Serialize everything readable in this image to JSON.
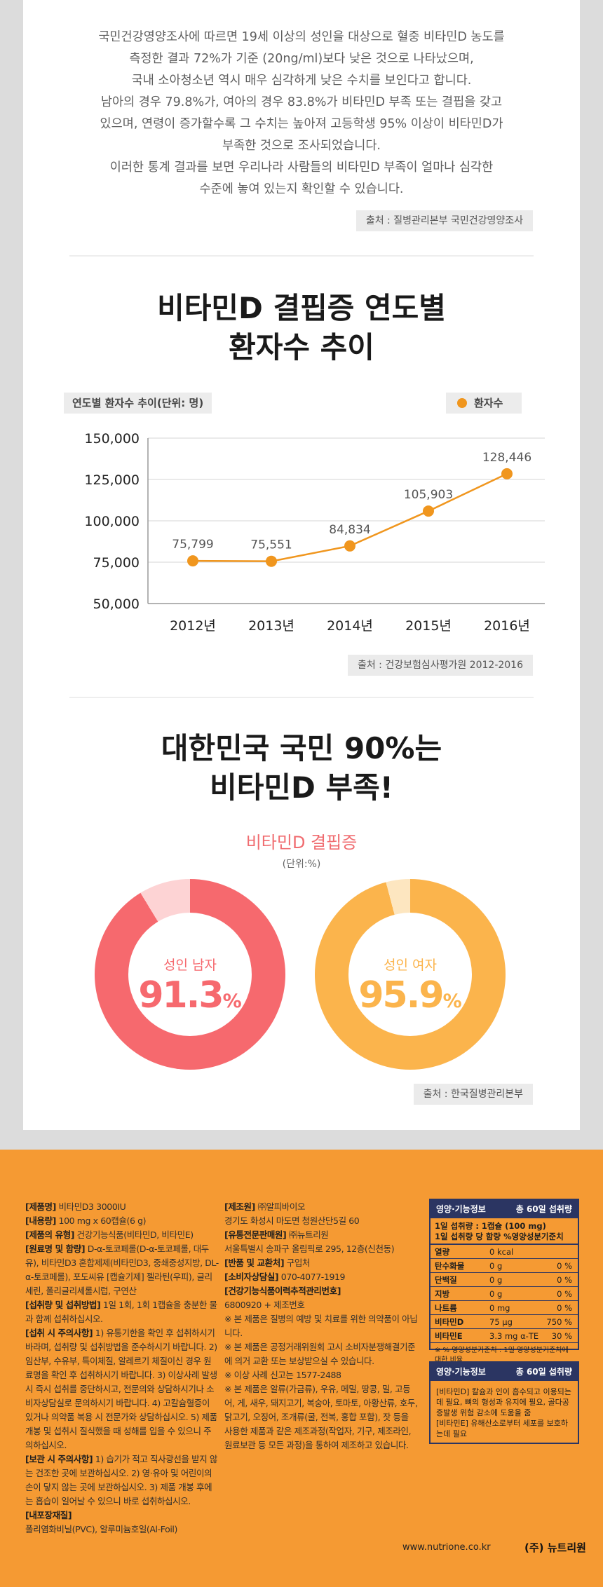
{
  "intro": {
    "lines": [
      "국민건강영양조사에 따르면 19세 이상의 성인을 대상으로 혈중 비타민D 농도를",
      "측정한 결과 72%가 기준 (20ng/ml)보다 낮은 것으로 나타났으며,",
      "국내 소아청소년 역시 매우 심각하게 낮은 수치를 보인다고 합니다.",
      "남아의 경우 79.8%가, 여아의 경우 83.8%가 비타민D 부족 또는 결핍을 갖고",
      "있으며, 연령이 증가할수록 그 수치는 높아져 고등학생 95% 이상이 비타민D가",
      "부족한 것으로 조사되었습니다.",
      "이러한 통계 결과를 보면 우리나라 사람들의 비타민D 부족이 얼마나 심각한",
      "수준에 놓여 있는지 확인할 수 있습니다."
    ],
    "source": "출처 : 질병관리본부 국민건강영양조사"
  },
  "section_chart": {
    "title_line1": "비타민D 결핍증 연도별",
    "title_line2": "환자수 추이",
    "tag": "연도별 환자수 추이(단위: 명)",
    "legend": "환자수",
    "source": "출처 : 건강보험심사평가원 2012-2016"
  },
  "chart_data": {
    "type": "line",
    "title": "연도별 환자수 추이(단위: 명)",
    "categories": [
      "2012년",
      "2013년",
      "2014년",
      "2015년",
      "2016년"
    ],
    "series": [
      {
        "name": "환자수",
        "values": [
          75799,
          75551,
          84834,
          105903,
          128446
        ]
      }
    ],
    "value_labels": [
      "75,799",
      "75,551",
      "84,834",
      "105,903",
      "128,446"
    ],
    "yticks": [
      50000,
      75000,
      100000,
      125000,
      150000
    ],
    "ytick_labels": [
      "50,000",
      "75,000",
      "100,000",
      "125,000",
      "150,000"
    ],
    "ylim": [
      50000,
      150000
    ],
    "grid": true,
    "legend_position": "top-right",
    "line_color": "#f0961e"
  },
  "section_donut": {
    "title_line1": "대한민국 국민 90%는",
    "title_line2": "비타민D 부족!",
    "donut_title": "비타민D 결핍증",
    "unit": "(단위:%)",
    "male": {
      "label": "성인 남자",
      "value": "91.3",
      "pct": "%",
      "fraction": 0.913,
      "color": "#f6696e",
      "track": "#fdd3d4"
    },
    "female": {
      "label": "성인 여자",
      "value": "95.9",
      "pct": "%",
      "fraction": 0.959,
      "color": "#fbb44c",
      "track": "#fde6c0"
    },
    "source": "출처 : 한국질병관리본부"
  },
  "product": {
    "col1": [
      {
        "k": "[제품명]",
        "v": " 비타민D3 3000IU"
      },
      {
        "k": "[내용량]",
        "v": " 100 mg x 60캡슐(6 g)"
      },
      {
        "k": "[제품의 유형]",
        "v": " 건강기능식품(비타민D, 비타민E)"
      },
      {
        "k": "[원료명 및 함량]",
        "v": " D-α-토코페롤(D-α-토코페롤, 대두유), 비타민D3 혼합제제(비타민D3, 중쇄중성지방, DL-α-토코페롤), 포도씨유 [캡슐기제] 젤라틴(우피), 글리세린, 폴리글리세롤시럽, 구연산"
      },
      {
        "k": "[섭취량 및 섭취방법]",
        "v": " 1일 1회, 1회 1캡슐을 충분한 물과 함께 섭취하십시오."
      },
      {
        "k": "[섭취 시 주의사항]",
        "v": " 1) 유통기한을 확인 후 섭취하시기 바라며, 섭취량 및 섭취방법을 준수하시기 바랍니다. 2) 임산부, 수유부, 특이체질, 알레르기 체질이신 경우 원료명을 확인 후 섭취하시기 바랍니다. 3) 이상사례 발생 시 즉시 섭취를 중단하시고, 전문의와 상담하시기나 소비자상담실로 문의하시기 바랍니다. 4) 고칼슘혈증이 있거나 의약품 복용 시 전문가와 상담하십시오. 5) 제품 개봉 및 섭취시 질식했을 때 성해를 입을 수 있으니 주의하십시오."
      },
      {
        "k": "[보관 시 주의사항]",
        "v": " 1) 습기가 적고 직사광선을 받지 않는 건조한 곳에 보관하십시오. 2) 영·유아 및 어린이의 손이 닿지 않는 곳에 보관하십시오. 3) 제품 개봉 후에는 흡습이 일어날 수 있으니 바로 섭취하십시오."
      },
      {
        "k": "[내포장재질]",
        "v": ""
      },
      {
        "k": "",
        "v": "폴리염화비닐(PVC), 알루미늄호일(Al-Foil)"
      }
    ],
    "col2": [
      {
        "k": "[제조원]",
        "v": " ㈜알피바이오"
      },
      {
        "k": "",
        "v": "경기도 화성시 마도면 청원산단5길 60"
      },
      {
        "k": "[유통전문판매원]",
        "v": " ㈜뉴트리원"
      },
      {
        "k": "",
        "v": "서울특별시 송파구 올림픽로 295, 12층(신천동)"
      },
      {
        "k": "[반품 및 교환처]",
        "v": " 구입처"
      },
      {
        "k": "[소비자상담실]",
        "v": " 070-4077-1919"
      },
      {
        "k": "[건강기능식품이력추적관리번호]",
        "v": ""
      },
      {
        "k": "",
        "v": "6800920 + 제조번호"
      },
      {
        "k": "",
        "v": "※ 본 제품은 질병의 예방 및 치료를 위한 의약품이 아닙니다."
      },
      {
        "k": "",
        "v": "※ 본 제품은 공정거래위원회 고시 소비자분쟁해결기준에 의거 교환 또는 보상받으실 수 있습니다."
      },
      {
        "k": "",
        "v": "※ 이상 사례 신고는 1577-2488"
      },
      {
        "k": "",
        "v": "※ 본 제품은 알류(가금류), 우유, 메밀, 땅콩, 밀, 고등어, 게, 새우, 돼지고기, 복숭아, 토마토, 아황산류, 호두, 닭고기, 오징어, 조개류(굴, 전복, 홍합 포함), 잣 등을 사용한 제품과 같은 제조과정(작업자, 기구, 제조라인, 원료보관 등 모든 과정)을 통하여 제조하고 있습니다."
      }
    ],
    "nutrition": {
      "head_left": "영양·기능정보",
      "head_right": "총 60일 섭취량",
      "sub1": "1일 섭취량 : 1캡슐 (100 mg)",
      "sub2": "1일 섭취량 당    함량   %영양성분기준치",
      "rows": [
        {
          "n": "열량",
          "v": "0  kcal",
          "p": ""
        },
        {
          "n": "탄수화물",
          "v": "0  g",
          "p": "0 %"
        },
        {
          "n": "단백질",
          "v": "0  g",
          "p": "0 %"
        },
        {
          "n": "지방",
          "v": "0  g",
          "p": "0 %"
        },
        {
          "n": "나트륨",
          "v": "0  mg",
          "p": "0 %"
        },
        {
          "n": "비타민D",
          "v": "75  μg",
          "p": "750 %"
        },
        {
          "n": "비타민E",
          "v": "3.3  mg α-TE",
          "p": "30 %"
        }
      ],
      "foot": "※ % 영양성분기준치 : 1일 영양성분기준치에 대한 비율"
    },
    "function_box": {
      "head_left": "영양·기능정보",
      "head_right": "총 60일 섭취량",
      "text1": "[비타민D] 칼슘과 인이 흡수되고 이용되는데 필요, 뼈의 형성과 유지에 필요, 골다공증발생 위험 감소에 도움을 줌",
      "text2": "[비타민E] 유해산소로부터 세포를 보호하는데 필요"
    },
    "website": "www.nutrione.co.kr",
    "brand": "(주) 뉴트리원"
  }
}
